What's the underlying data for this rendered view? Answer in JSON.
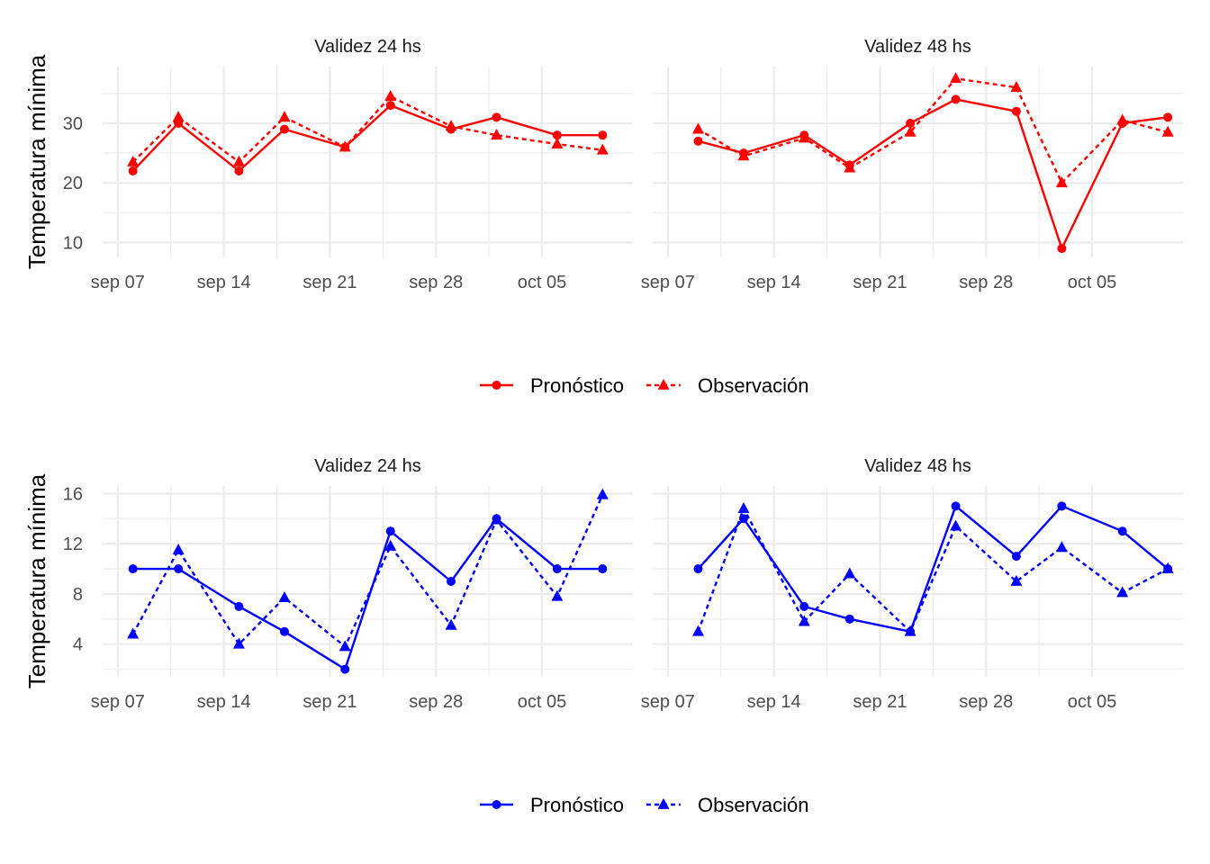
{
  "chart_data": [
    {
      "type": "line",
      "ylabel": "Temperatura mínima",
      "color": "#ff0000",
      "ylim": [
        7.5,
        39.5
      ],
      "yticks": [
        10,
        20,
        30
      ],
      "xticks": [
        "sep 07",
        "sep 14",
        "sep 21",
        "sep 28",
        "oct 05"
      ],
      "legend": {
        "position": "bottom",
        "labels": [
          "Pronóstico",
          "Observación"
        ]
      },
      "panels": [
        {
          "title": "Validez 24 hs",
          "xlim": [
            "2023-09-06",
            "2023-10-11"
          ],
          "series": [
            {
              "name": "Pronóstico",
              "x": [
                "2023-09-08",
                "2023-09-11",
                "2023-09-15",
                "2023-09-18",
                "2023-09-22",
                "2023-09-25",
                "2023-09-29",
                "2023-10-02",
                "2023-10-06",
                "2023-10-09"
              ],
              "y": [
                22,
                30,
                22,
                29,
                26,
                33,
                29,
                31,
                28,
                28
              ]
            },
            {
              "name": "Observación",
              "x": [
                "2023-09-08",
                "2023-09-11",
                "2023-09-15",
                "2023-09-18",
                "2023-09-22",
                "2023-09-25",
                "2023-09-29",
                "2023-10-02",
                "2023-10-06",
                "2023-10-09"
              ],
              "y": [
                23.5,
                31,
                23.5,
                31,
                26,
                34.5,
                29.5,
                28,
                26.5,
                25.5
              ]
            }
          ]
        },
        {
          "title": "Validez 48 hs",
          "xlim": [
            "2023-09-06",
            "2023-10-11"
          ],
          "series": [
            {
              "name": "Pronóstico",
              "x": [
                "2023-09-09",
                "2023-09-12",
                "2023-09-16",
                "2023-09-19",
                "2023-09-23",
                "2023-09-26",
                "2023-09-30",
                "2023-10-03",
                "2023-10-07",
                "2023-10-10"
              ],
              "y": [
                27,
                25,
                28,
                23,
                30,
                34,
                32,
                9,
                30,
                31
              ]
            },
            {
              "name": "Observación",
              "x": [
                "2023-09-09",
                "2023-09-12",
                "2023-09-16",
                "2023-09-19",
                "2023-09-23",
                "2023-09-26",
                "2023-09-30",
                "2023-10-03",
                "2023-10-07",
                "2023-10-10"
              ],
              "y": [
                29,
                24.5,
                27.5,
                22.5,
                28.5,
                37.5,
                36,
                20,
                30.5,
                28.5
              ]
            }
          ]
        }
      ]
    },
    {
      "type": "line",
      "ylabel": "Temperatura mínima",
      "color": "#0000ff",
      "ylim": [
        1.4,
        16.6
      ],
      "yticks": [
        4,
        8,
        12,
        16
      ],
      "xticks": [
        "sep 07",
        "sep 14",
        "sep 21",
        "sep 28",
        "oct 05"
      ],
      "legend": {
        "position": "bottom",
        "labels": [
          "Pronóstico",
          "Observación"
        ]
      },
      "panels": [
        {
          "title": "Validez 24 hs",
          "xlim": [
            "2023-09-06",
            "2023-10-11"
          ],
          "series": [
            {
              "name": "Pronóstico",
              "x": [
                "2023-09-08",
                "2023-09-11",
                "2023-09-15",
                "2023-09-18",
                "2023-09-22",
                "2023-09-25",
                "2023-09-29",
                "2023-10-02",
                "2023-10-06",
                "2023-10-09"
              ],
              "y": [
                10,
                10,
                7,
                5,
                2,
                13,
                9,
                14,
                10,
                10
              ]
            },
            {
              "name": "Observación",
              "x": [
                "2023-09-08",
                "2023-09-11",
                "2023-09-15",
                "2023-09-18",
                "2023-09-22",
                "2023-09-25",
                "2023-09-29",
                "2023-10-02",
                "2023-10-06",
                "2023-10-09"
              ],
              "y": [
                4.8,
                11.5,
                4,
                7.7,
                3.8,
                11.8,
                5.5,
                13.9,
                7.8,
                15.9
              ]
            }
          ]
        },
        {
          "title": "Validez 48 hs",
          "xlim": [
            "2023-09-06",
            "2023-10-11"
          ],
          "series": [
            {
              "name": "Pronóstico",
              "x": [
                "2023-09-09",
                "2023-09-12",
                "2023-09-16",
                "2023-09-19",
                "2023-09-23",
                "2023-09-26",
                "2023-09-30",
                "2023-10-03",
                "2023-10-07",
                "2023-10-10"
              ],
              "y": [
                10,
                14,
                7,
                6,
                5,
                15,
                11,
                15,
                13,
                10
              ]
            },
            {
              "name": "Observación",
              "x": [
                "2023-09-09",
                "2023-09-12",
                "2023-09-16",
                "2023-09-19",
                "2023-09-23",
                "2023-09-26",
                "2023-09-30",
                "2023-10-03",
                "2023-10-07",
                "2023-10-10"
              ],
              "y": [
                5,
                14.8,
                5.8,
                9.6,
                5,
                13.4,
                9,
                11.7,
                8.1,
                10
              ]
            }
          ]
        }
      ]
    }
  ]
}
